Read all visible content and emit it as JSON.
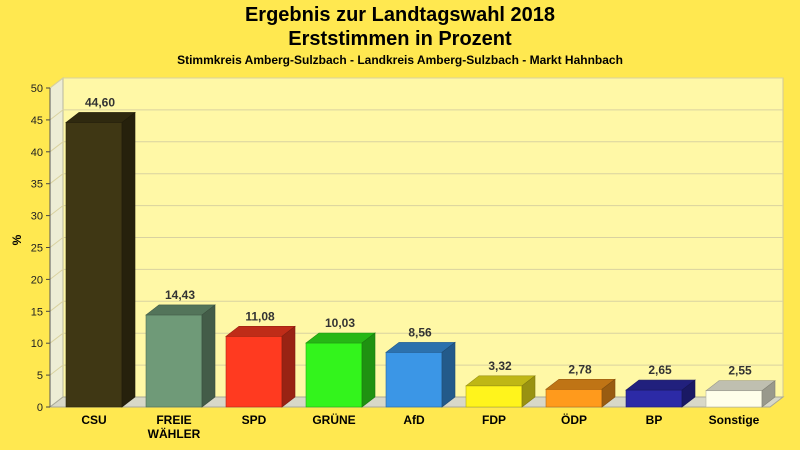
{
  "chart_data": {
    "type": "bar",
    "title": "Ergebnis zur Landtagswahl 2018",
    "title_line2": "Erststimmen in Prozent",
    "subtitle": "Stimmkreis Amberg-Sulzbach - Landkreis Amberg-Sulzbach - Markt Hahnbach",
    "ylabel": "%",
    "xlabel": "",
    "ylim": [
      0,
      50
    ],
    "yticks": [
      0,
      5,
      10,
      15,
      20,
      25,
      30,
      35,
      40,
      45,
      50
    ],
    "grid": true,
    "legend": "none",
    "categories": [
      [
        "CSU"
      ],
      [
        "FREIE",
        "WÄHLER"
      ],
      [
        "SPD"
      ],
      [
        "GRÜNE"
      ],
      [
        "AfD"
      ],
      [
        "FDP"
      ],
      [
        "ÖDP"
      ],
      [
        "BP"
      ],
      [
        "Sonstige"
      ]
    ],
    "values": [
      44.6,
      14.43,
      11.08,
      10.03,
      8.56,
      3.32,
      2.78,
      2.65,
      2.55
    ],
    "value_labels": [
      "44,60",
      "14,43",
      "11,08",
      "10,03",
      "8,56",
      "3,32",
      "2,78",
      "2,65",
      "2,55"
    ],
    "colors": [
      "#3F3714",
      "#6F9A78",
      "#FF3A20",
      "#33F41C",
      "#3B96E6",
      "#FFF41C",
      "#FF9A1C",
      "#2C2AA6",
      "#FFFFEA"
    ]
  }
}
